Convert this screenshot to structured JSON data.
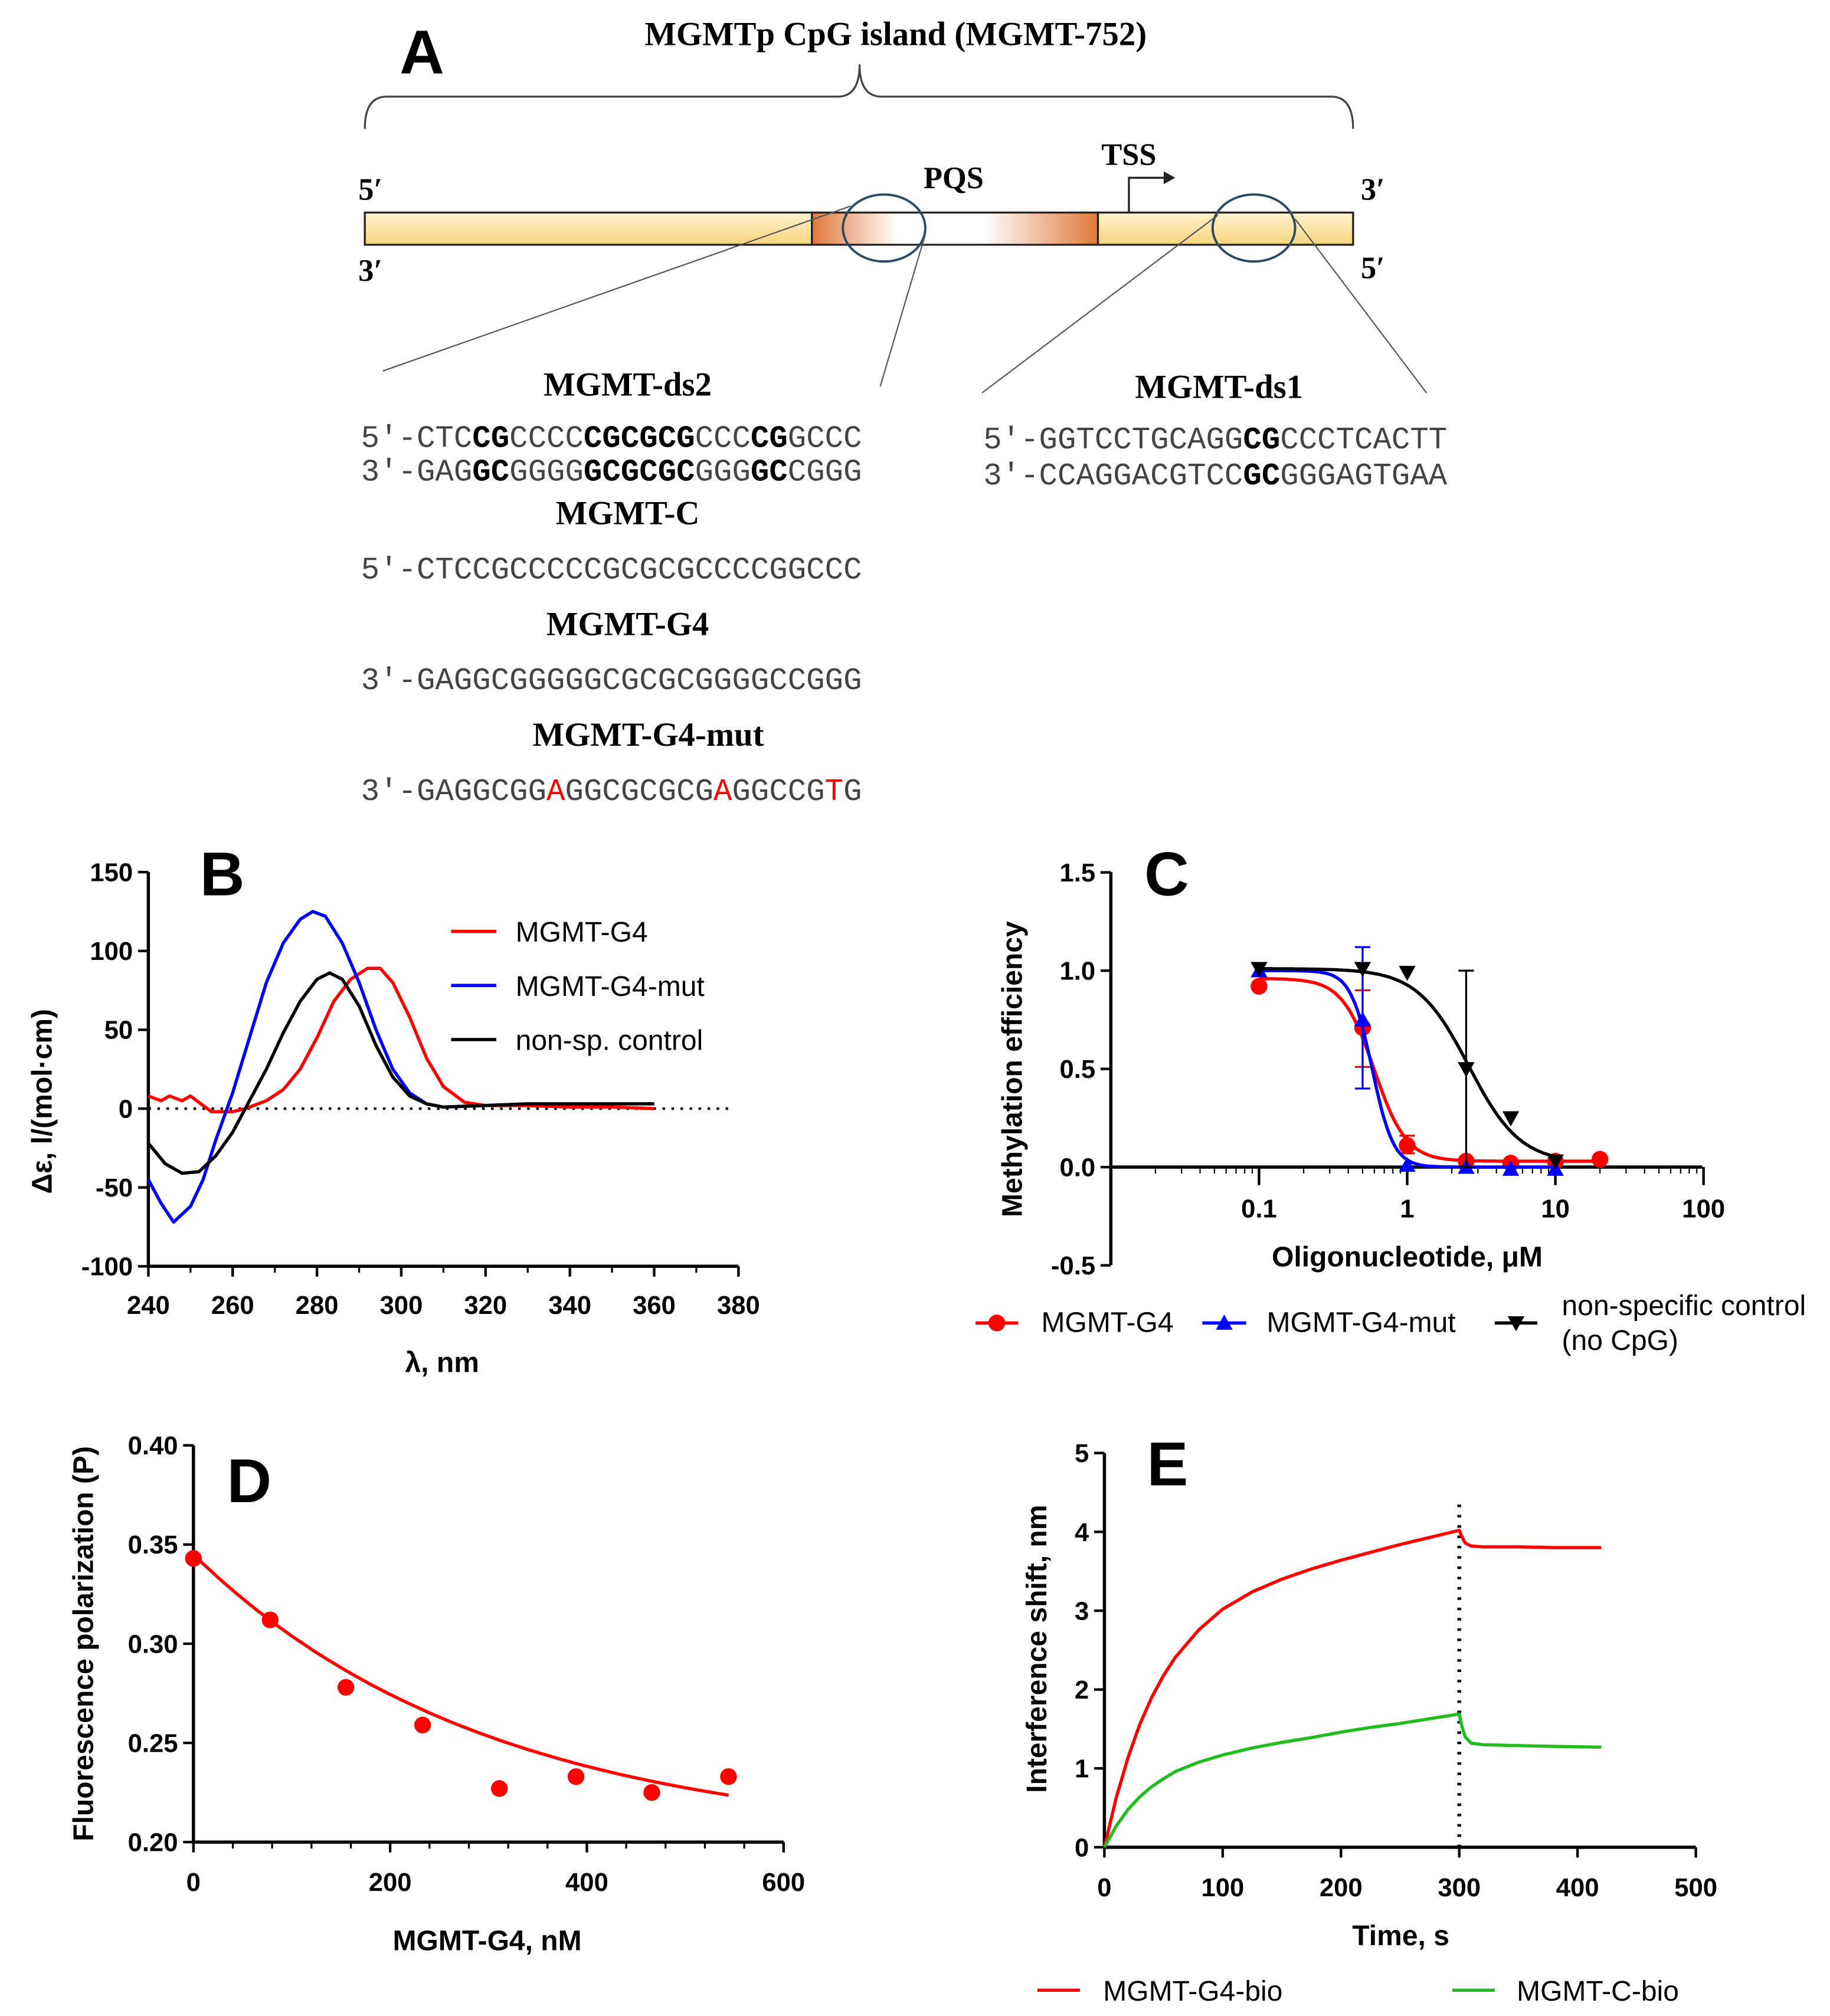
{
  "diagram": {
    "panel_label": "A",
    "title": "MGMTp CpG island (MGMT-752)",
    "strand_labels": {
      "left_top": "5′",
      "left_bottom": "3′",
      "right_top": "3′",
      "right_bottom": "5′"
    },
    "pqs_label": "PQS",
    "tss_label": "TSS",
    "sequences": [
      {
        "name": "MGMT-ds2",
        "lines": [
          [
            [
              "5'-CTC",
              ""
            ],
            [
              "CG",
              "b"
            ],
            [
              "CCCC",
              ""
            ],
            [
              "CGCGCG",
              "b"
            ],
            [
              "CCC",
              ""
            ],
            [
              "CG",
              "b"
            ],
            [
              "GCCC",
              ""
            ]
          ],
          [
            [
              "3'-GAG",
              ""
            ],
            [
              "GC",
              "b"
            ],
            [
              "GGGG",
              ""
            ],
            [
              "GCGCGC",
              "b"
            ],
            [
              "GGG",
              ""
            ],
            [
              "GC",
              "b"
            ],
            [
              "CGGG",
              ""
            ]
          ]
        ]
      },
      {
        "name": "MGMT-C",
        "lines": [
          [
            [
              "5'-CTCCGCCCCCGCGCGCCCCGGCCC",
              ""
            ]
          ]
        ]
      },
      {
        "name": "MGMT-G4",
        "lines": [
          [
            [
              "3'-GAGGCGGGGGCGCGCGGGGCCGGG",
              ""
            ]
          ]
        ]
      },
      {
        "name": "MGMT-G4-mut",
        "lines": [
          [
            [
              "3'-GAGGCGG",
              ""
            ],
            [
              "A",
              "r"
            ],
            [
              "GGCGCGCG",
              ""
            ],
            [
              "A",
              "r"
            ],
            [
              "GGCCG",
              ""
            ],
            [
              "T",
              "r"
            ],
            [
              "G",
              ""
            ]
          ]
        ]
      },
      {
        "name": "MGMT-ds1",
        "lines": [
          [
            [
              "5'-GGTCCTGCAGG",
              ""
            ],
            [
              "CG",
              "b"
            ],
            [
              "CCCTCACTT",
              ""
            ]
          ],
          [
            [
              "3'-CCAGGACGTCC",
              ""
            ],
            [
              "GC",
              "b"
            ],
            [
              "GGGAGTGAA",
              ""
            ]
          ]
        ]
      }
    ],
    "colors": {
      "bar_yellow": "#fbe3a0",
      "bar_orange": "#e07a3a",
      "mutation": "#ff0000"
    }
  },
  "chart_data": [
    {
      "panel_label": "B",
      "type": "line",
      "xlabel": "λ, nm",
      "ylabel": "Δε, l/(mol·cm)",
      "xlim": [
        240,
        380
      ],
      "ylim": [
        -100,
        150
      ],
      "xticks": [
        240,
        260,
        280,
        300,
        320,
        340,
        360,
        380
      ],
      "yticks": [
        -100,
        -50,
        0,
        50,
        100,
        150
      ],
      "zero_line": "dotted",
      "legend_position": "top-right",
      "series": [
        {
          "name": "MGMT-G4",
          "color": "#ff0000",
          "x": [
            240,
            243,
            245,
            248,
            250,
            253,
            255,
            260,
            263,
            268,
            272,
            276,
            280,
            284,
            288,
            292,
            295,
            298,
            302,
            306,
            310,
            315,
            320,
            330,
            340,
            350,
            360
          ],
          "y": [
            8,
            5,
            8,
            5,
            8,
            2,
            -2,
            -2,
            0,
            5,
            12,
            25,
            45,
            68,
            82,
            89,
            89,
            80,
            58,
            32,
            14,
            4,
            2,
            2,
            1,
            1,
            0
          ]
        },
        {
          "name": "MGMT-G4-mut",
          "color": "#0000ff",
          "x": [
            240,
            243,
            246,
            250,
            253,
            256,
            260,
            264,
            268,
            272,
            276,
            279,
            282,
            286,
            290,
            294,
            298,
            302,
            306,
            310,
            320,
            330,
            340,
            350,
            360
          ],
          "y": [
            -45,
            -60,
            -72,
            -62,
            -45,
            -20,
            10,
            45,
            80,
            105,
            120,
            125,
            122,
            105,
            80,
            50,
            25,
            10,
            3,
            1,
            2,
            3,
            3,
            3,
            3
          ]
        },
        {
          "name": "non-sp. control",
          "color": "#000000",
          "x": [
            240,
            244,
            248,
            252,
            256,
            260,
            264,
            268,
            272,
            276,
            280,
            283,
            286,
            290,
            294,
            298,
            302,
            306,
            310,
            320,
            330,
            340,
            360
          ],
          "y": [
            -22,
            -35,
            -41,
            -40,
            -30,
            -15,
            5,
            25,
            48,
            68,
            82,
            86,
            82,
            65,
            40,
            20,
            8,
            3,
            1,
            2,
            3,
            3,
            3
          ]
        }
      ]
    },
    {
      "panel_label": "C",
      "type": "scatter",
      "xlabel": "Oligonucleotide, μM",
      "ylabel": "Methylation efficiency",
      "xscale": "log",
      "xlim": [
        0.01,
        100
      ],
      "ylim": [
        -0.5,
        1.5
      ],
      "xticks": [
        0.1,
        1,
        10,
        100
      ],
      "xtick_labels": [
        "0.1",
        "1",
        "10",
        "100"
      ],
      "yticks": [
        -0.5,
        0.0,
        0.5,
        1.0,
        1.5
      ],
      "ytick_labels": [
        "-0.5",
        "0.0",
        "0.5",
        "1.0",
        "1.5"
      ],
      "fit_curves": "sigmoidal",
      "legend_position": "bottom",
      "series": [
        {
          "name": "MGMT-G4",
          "color": "#ff0000",
          "marker": "circle",
          "x": [
            0.1,
            0.5,
            1,
            2.5,
            5,
            10,
            20
          ],
          "y": [
            0.92,
            0.71,
            0.11,
            0.03,
            0.02,
            0.03,
            0.04
          ],
          "err_low": [
            null,
            0.51,
            0.07,
            null,
            null,
            null,
            null
          ],
          "err_high": [
            null,
            0.9,
            0.16,
            null,
            null,
            null,
            null
          ]
        },
        {
          "name": "MGMT-G4-mut",
          "color": "#0000ff",
          "marker": "triangle-up",
          "x": [
            0.1,
            0.5,
            1,
            2.5,
            5,
            10
          ],
          "y": [
            1.0,
            0.75,
            0.01,
            0.0,
            -0.01,
            -0.01
          ],
          "err_low": [
            null,
            0.4,
            null,
            null,
            null,
            null
          ],
          "err_high": [
            null,
            1.12,
            null,
            null,
            null,
            null
          ]
        },
        {
          "name": "non-specific control",
          "name_line2": "(no CpG)",
          "color": "#000000",
          "marker": "triangle-down",
          "x": [
            0.1,
            0.5,
            1,
            2.5,
            5,
            10
          ],
          "y": [
            1.01,
            1.01,
            0.99,
            0.5,
            0.25,
            0.03
          ],
          "err_low": [
            null,
            null,
            null,
            0.0,
            null,
            null
          ],
          "err_high": [
            null,
            null,
            null,
            1.0,
            null,
            null
          ]
        }
      ]
    },
    {
      "panel_label": "D",
      "type": "scatter",
      "xlabel": "MGMT-G4, nM",
      "ylabel": "Fluorescence polarization (P)",
      "xlim": [
        0,
        600
      ],
      "ylim": [
        0.2,
        0.4
      ],
      "xticks": [
        0,
        200,
        400,
        600
      ],
      "yticks": [
        0.2,
        0.25,
        0.3,
        0.35,
        0.4
      ],
      "ytick_labels": [
        "0.20",
        "0.25",
        "0.30",
        "0.35",
        "0.40"
      ],
      "fit_curve": "exponential decay",
      "series": [
        {
          "color": "#ff0000",
          "marker": "circle",
          "x": [
            0,
            78,
            155,
            233,
            311,
            389,
            466,
            544
          ],
          "y": [
            0.343,
            0.312,
            0.278,
            0.259,
            0.227,
            0.233,
            0.225,
            0.233
          ]
        }
      ]
    },
    {
      "panel_label": "E",
      "type": "line",
      "xlabel": "Time, s",
      "ylabel": "Interference shift, nm",
      "xlim": [
        0,
        500
      ],
      "ylim": [
        0,
        5
      ],
      "xticks": [
        0,
        100,
        200,
        300,
        400,
        500
      ],
      "yticks": [
        0,
        1,
        2,
        3,
        4,
        5
      ],
      "vertical_marker": {
        "x": 300,
        "style": "dotted"
      },
      "legend_position": "bottom",
      "series": [
        {
          "name": "MGMT-G4-bio",
          "color": "#ff0000",
          "x": [
            0,
            10,
            20,
            30,
            40,
            50,
            60,
            80,
            100,
            125,
            150,
            175,
            200,
            225,
            250,
            275,
            300,
            302,
            305,
            310,
            320,
            350,
            380,
            420
          ],
          "y": [
            0,
            0.63,
            1.14,
            1.56,
            1.9,
            2.18,
            2.41,
            2.76,
            3.02,
            3.24,
            3.4,
            3.53,
            3.64,
            3.74,
            3.84,
            3.93,
            4.02,
            3.95,
            3.86,
            3.82,
            3.81,
            3.81,
            3.8,
            3.8
          ]
        },
        {
          "name": "MGMT-C-bio",
          "color": "#22bb22",
          "x": [
            0,
            10,
            20,
            30,
            40,
            50,
            60,
            80,
            100,
            125,
            150,
            175,
            200,
            225,
            250,
            275,
            300,
            302,
            305,
            310,
            320,
            350,
            380,
            420
          ],
          "y": [
            0,
            0.27,
            0.48,
            0.64,
            0.77,
            0.87,
            0.96,
            1.08,
            1.17,
            1.26,
            1.33,
            1.39,
            1.46,
            1.52,
            1.57,
            1.63,
            1.69,
            1.55,
            1.4,
            1.32,
            1.3,
            1.29,
            1.28,
            1.27
          ]
        }
      ]
    }
  ]
}
